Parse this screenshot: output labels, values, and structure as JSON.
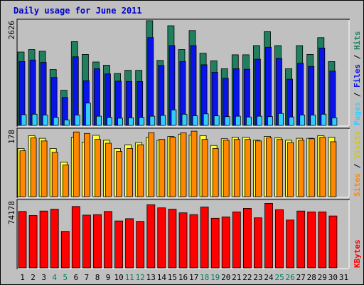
{
  "chart_data": {
    "type": "bar",
    "title": "Daily usage for June 2011",
    "categories": [
      "1",
      "2",
      "3",
      "4",
      "5",
      "6",
      "7",
      "8",
      "9",
      "10",
      "11",
      "12",
      "13",
      "14",
      "15",
      "16",
      "17",
      "18",
      "19",
      "20",
      "21",
      "22",
      "23",
      "24",
      "25",
      "26",
      "27",
      "28",
      "29",
      "30",
      "31"
    ],
    "weekend_days": [
      "4",
      "5",
      "11",
      "12",
      "18",
      "19",
      "25",
      "26"
    ],
    "panels": [
      {
        "name": "hits_files_pages",
        "max_label": "2626",
        "ymax": 2626,
        "series": [
          {
            "name": "Hits",
            "color": "#1f7f5f",
            "values": [
              1840,
              1900,
              1860,
              1400,
              880,
              2100,
              1780,
              1590,
              1510,
              1300,
              1380,
              1380,
              2626,
              1630,
              2500,
              1900,
              2380,
              1810,
              1620,
              1420,
              1770,
              1770,
              2000,
              2350,
              2000,
              1420,
              2000,
              1780,
              2200,
              1600,
              0
            ]
          },
          {
            "name": "Files",
            "color": "#0a14e8",
            "values": [
              1600,
              1640,
              1580,
              1200,
              700,
              1720,
              1120,
              1420,
              1290,
              1110,
              1100,
              1100,
              2200,
              1500,
              2000,
              1600,
              2000,
              1520,
              1330,
              1180,
              1420,
              1410,
              1660,
              1960,
              1680,
              1160,
              1560,
              1480,
              1940,
              1360,
              0
            ]
          },
          {
            "name": "Pages",
            "color": "#33ccff",
            "values": [
              270,
              280,
              260,
              200,
              140,
              260,
              560,
              230,
              200,
              180,
              190,
              200,
              230,
              250,
              390,
              280,
              240,
              290,
              240,
              220,
              230,
              210,
              230,
              220,
              300,
              210,
              260,
              260,
              280,
              190,
              0
            ]
          }
        ]
      },
      {
        "name": "visits_sites",
        "max_label": "178",
        "ymax": 178,
        "series": [
          {
            "name": "Visits",
            "color": "#ffff33",
            "values": [
              128,
              162,
              155,
              128,
              92,
              158,
              145,
              163,
              150,
              128,
              138,
              144,
              158,
              150,
              160,
              166,
              164,
              162,
              136,
              154,
              158,
              158,
              150,
              160,
              156,
              150,
              155,
              155,
              162,
              158,
              0
            ]
          },
          {
            "name": "Sites",
            "color": "#ff8800",
            "values": [
              122,
              156,
              148,
              118,
              84,
              172,
              168,
              152,
              142,
              120,
              128,
              138,
              170,
              152,
              158,
              170,
              174,
              152,
              128,
              150,
              152,
              152,
              148,
              156,
              152,
              144,
              150,
              154,
              158,
              146,
              0
            ]
          }
        ]
      },
      {
        "name": "kbytes",
        "max_label": "74178",
        "ymax": 74178,
        "series": [
          {
            "name": "KBytes",
            "color": "#ff0000",
            "values": [
              62500,
              58000,
              63000,
              65000,
              40500,
              68000,
              58500,
              59000,
              62500,
              52000,
              54500,
              51500,
              70000,
              66500,
              65000,
              61000,
              59000,
              67500,
              55000,
              56500,
              62000,
              66000,
              55500,
              71500,
              64500,
              53000,
              63000,
              62000,
              62000,
              57500,
              0
            ]
          }
        ]
      }
    ]
  }
}
